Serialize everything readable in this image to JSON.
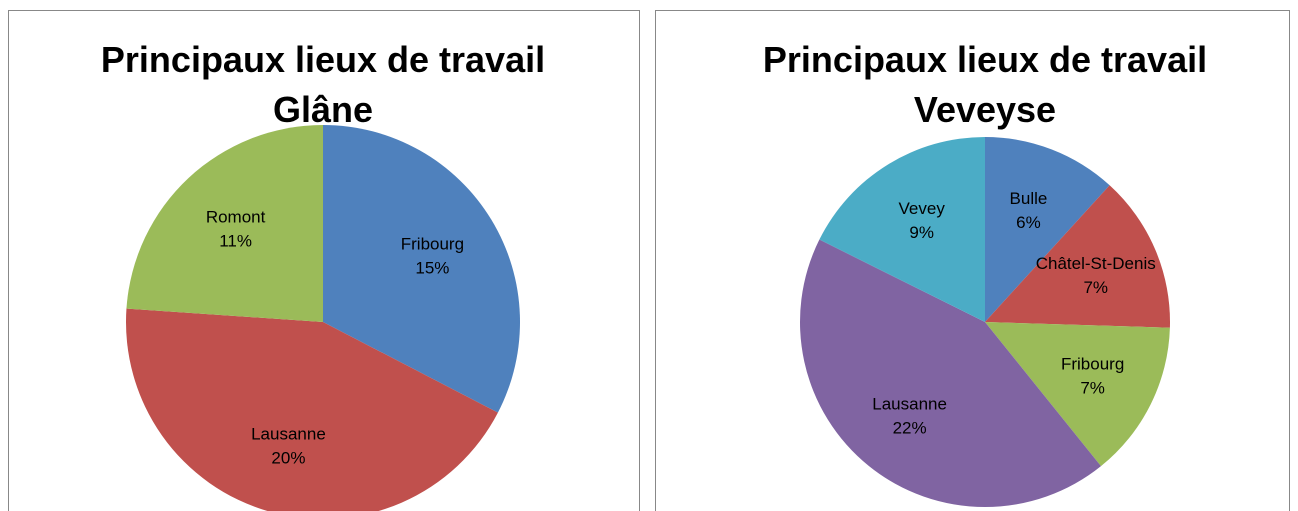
{
  "chart_data": [
    {
      "type": "pie",
      "title": "Principaux lieux de travail",
      "subtitle": "Glâne",
      "categories": [
        "Fribourg",
        "Lausanne",
        "Romont"
      ],
      "values": [
        15,
        20,
        11
      ],
      "value_labels": [
        "15%",
        "20%",
        "11%"
      ],
      "colors": [
        "#4f81bd",
        "#c0504d",
        "#9bbb59"
      ]
    },
    {
      "type": "pie",
      "title": "Principaux lieux de travail",
      "subtitle": "Veveyse",
      "categories": [
        "Bulle",
        "Châtel-St-Denis",
        "Fribourg",
        "Lausanne",
        "Vevey"
      ],
      "values": [
        6,
        7,
        7,
        22,
        9
      ],
      "value_labels": [
        "6%",
        "7%",
        "7%",
        "22%",
        "9%"
      ],
      "colors": [
        "#4f81bd",
        "#c0504d",
        "#9bbb59",
        "#8064a2",
        "#4bacc6"
      ]
    }
  ]
}
